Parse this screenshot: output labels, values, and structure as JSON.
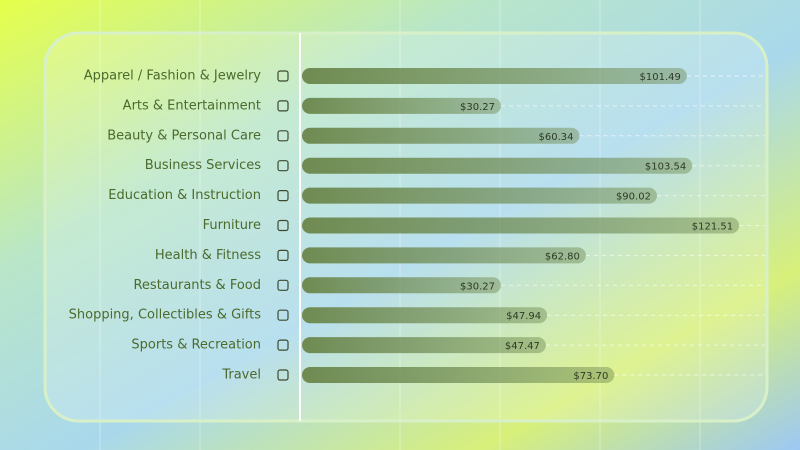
{
  "chart_data": {
    "type": "bar",
    "orientation": "horizontal",
    "color": "#6f8b52",
    "categories": [
      "Apparel / Fashion & Jewelry",
      "Arts & Entertainment",
      "Beauty & Personal Care",
      "Business Services",
      "Education & Instruction",
      "Furniture",
      "Health & Fitness",
      "Restaurants & Food",
      "Shopping, Collectibles & Gifts",
      "Sports & Recreation",
      "Travel"
    ],
    "values": [
      101.49,
      30.27,
      60.34,
      103.54,
      90.02,
      121.51,
      62.8,
      30.27,
      47.94,
      47.47,
      73.7
    ],
    "value_labels": [
      "$101.49",
      "$30.27",
      "$60.34",
      "$103.54",
      "$90.02",
      "$121.51",
      "$62.80",
      "$30.27",
      "$47.94",
      "$47.47",
      "$73.70"
    ]
  }
}
